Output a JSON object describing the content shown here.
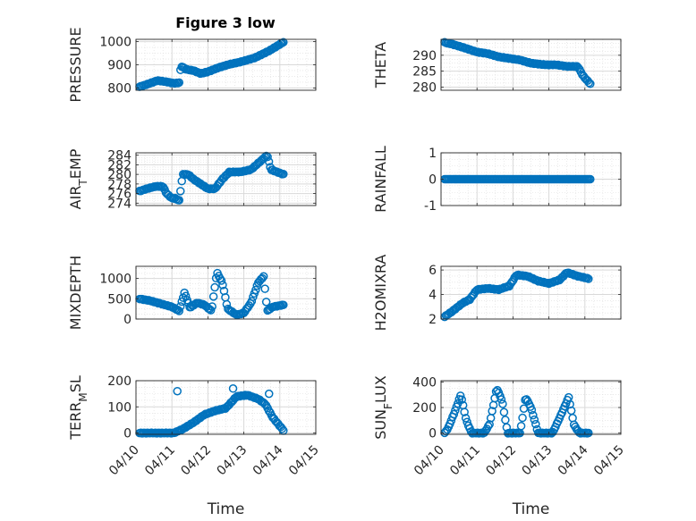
{
  "figure": {
    "title": "Figure 3 low"
  },
  "colors": {
    "marker": "#0072BD",
    "grid": "#DCDCDC",
    "axis": "#262626"
  },
  "chart_data": [
    {
      "id": "pressure",
      "type": "scatter",
      "title": "Figure 3 low",
      "ylabel": "PRESSURE",
      "xlabel": "",
      "ylim": [
        790,
        1010
      ],
      "yticks": [
        800,
        900,
        1000
      ],
      "ytick_labels": [
        "800",
        "900",
        "1000"
      ],
      "xlim": [
        0,
        5
      ],
      "xticks": [
        0,
        1,
        2,
        3,
        4,
        5
      ],
      "x_start": 0.1,
      "x_end": 4.1,
      "knots": [
        [
          0.1,
          805
        ],
        [
          0.3,
          815
        ],
        [
          0.6,
          832
        ],
        [
          0.9,
          825
        ],
        [
          1.05,
          820
        ],
        [
          1.2,
          822
        ],
        [
          1.25,
          895
        ],
        [
          1.4,
          880
        ],
        [
          1.6,
          875
        ],
        [
          1.8,
          862
        ],
        [
          2.0,
          870
        ],
        [
          2.3,
          888
        ],
        [
          2.6,
          902
        ],
        [
          2.9,
          912
        ],
        [
          3.3,
          930
        ],
        [
          3.7,
          960
        ],
        [
          4.1,
          998
        ]
      ],
      "segment_breaks": [
        1.22
      ]
    },
    {
      "id": "theta",
      "type": "scatter",
      "ylabel": "THETA",
      "xlabel": "",
      "ylim": [
        279,
        295
      ],
      "yticks": [
        280,
        285,
        290
      ],
      "ytick_labels": [
        "280",
        "285",
        "290"
      ],
      "xlim": [
        0,
        5
      ],
      "xticks": [
        0,
        1,
        2,
        3,
        4,
        5
      ],
      "x_start": 0.1,
      "x_end": 4.15,
      "knots": [
        [
          0.1,
          294
        ],
        [
          0.3,
          293.5
        ],
        [
          0.6,
          292.5
        ],
        [
          1.0,
          291
        ],
        [
          1.3,
          290.5
        ],
        [
          1.6,
          289.5
        ],
        [
          1.9,
          289
        ],
        [
          2.2,
          288.5
        ],
        [
          2.5,
          287.5
        ],
        [
          2.9,
          287
        ],
        [
          3.2,
          287
        ],
        [
          3.5,
          286.5
        ],
        [
          3.8,
          286.5
        ],
        [
          3.95,
          283.5
        ],
        [
          4.15,
          281
        ]
      ]
    },
    {
      "id": "air_temp",
      "type": "scatter",
      "ylabel": "AIR",
      "ylabel_sub": "T",
      "ylabel_suffix": "EMP",
      "xlabel": "",
      "ylim": [
        273.5,
        284.5
      ],
      "yticks": [
        274,
        276,
        278,
        280,
        282,
        284
      ],
      "ytick_labels": [
        "274",
        "276",
        "278",
        "280",
        "282",
        "284"
      ],
      "xlim": [
        0,
        5
      ],
      "xticks": [
        0,
        1,
        2,
        3,
        4,
        5
      ],
      "x_start": 0.1,
      "x_end": 4.1,
      "knots": [
        [
          0.1,
          276.5
        ],
        [
          0.3,
          277
        ],
        [
          0.55,
          277.5
        ],
        [
          0.75,
          277.5
        ],
        [
          0.85,
          276
        ],
        [
          1.0,
          275
        ],
        [
          1.1,
          275
        ],
        [
          1.2,
          274.5
        ],
        [
          1.3,
          280
        ],
        [
          1.45,
          280
        ],
        [
          1.6,
          279
        ],
        [
          1.8,
          278
        ],
        [
          2.0,
          277
        ],
        [
          2.2,
          277
        ],
        [
          2.4,
          279
        ],
        [
          2.6,
          280.5
        ],
        [
          2.9,
          280.5
        ],
        [
          3.2,
          281
        ],
        [
          3.5,
          283
        ],
        [
          3.65,
          284
        ],
        [
          3.75,
          281
        ],
        [
          4.1,
          280
        ]
      ]
    },
    {
      "id": "rainfall",
      "type": "scatter",
      "ylabel": "RAINFALL",
      "xlabel": "",
      "ylim": [
        -1,
        1
      ],
      "yticks": [
        -1,
        0,
        1
      ],
      "ytick_labels": [
        "-1",
        "0",
        "1"
      ],
      "xlim": [
        0,
        5
      ],
      "xticks": [
        0,
        1,
        2,
        3,
        4,
        5
      ],
      "x_start": 0.1,
      "x_end": 4.15,
      "knots": [
        [
          0.1,
          0
        ],
        [
          4.15,
          0
        ]
      ]
    },
    {
      "id": "mixdepth",
      "type": "scatter",
      "ylabel": "MIXDEPTH",
      "xlabel": "",
      "ylim": [
        0,
        1300
      ],
      "yticks": [
        0,
        500,
        1000
      ],
      "ytick_labels": [
        "0",
        "500",
        "1000"
      ],
      "xlim": [
        0,
        5
      ],
      "xticks": [
        0,
        1,
        2,
        3,
        4,
        5
      ],
      "x_start": 0.1,
      "x_end": 4.1,
      "knots": [
        [
          0.1,
          500
        ],
        [
          0.4,
          450
        ],
        [
          0.8,
          350
        ],
        [
          1.0,
          300
        ],
        [
          1.2,
          200
        ],
        [
          1.35,
          650
        ],
        [
          1.5,
          280
        ],
        [
          1.7,
          400
        ],
        [
          1.9,
          350
        ],
        [
          2.1,
          200
        ],
        [
          2.25,
          1150
        ],
        [
          2.4,
          900
        ],
        [
          2.55,
          250
        ],
        [
          2.8,
          100
        ],
        [
          3.0,
          150
        ],
        [
          3.2,
          400
        ],
        [
          3.4,
          900
        ],
        [
          3.55,
          1050
        ],
        [
          3.65,
          200
        ],
        [
          3.8,
          300
        ],
        [
          4.1,
          350
        ]
      ]
    },
    {
      "id": "h2omixra",
      "type": "scatter",
      "ylabel": "H2OMIXRA",
      "xlabel": "",
      "ylim": [
        2,
        6.3
      ],
      "yticks": [
        2,
        4,
        6
      ],
      "ytick_labels": [
        "2",
        "4",
        "6"
      ],
      "xlim": [
        0,
        5
      ],
      "xticks": [
        0,
        1,
        2,
        3,
        4,
        5
      ],
      "x_start": 0.1,
      "x_end": 4.1,
      "knots": [
        [
          0.1,
          2.2
        ],
        [
          0.3,
          2.6
        ],
        [
          0.6,
          3.3
        ],
        [
          0.8,
          3.6
        ],
        [
          1.0,
          4.4
        ],
        [
          1.3,
          4.5
        ],
        [
          1.6,
          4.4
        ],
        [
          1.9,
          4.7
        ],
        [
          2.1,
          5.6
        ],
        [
          2.4,
          5.5
        ],
        [
          2.7,
          5.1
        ],
        [
          3.0,
          4.9
        ],
        [
          3.3,
          5.2
        ],
        [
          3.5,
          5.8
        ],
        [
          3.8,
          5.5
        ],
        [
          4.1,
          5.3
        ]
      ]
    },
    {
      "id": "terr_msl",
      "type": "scatter",
      "ylabel": "TERR",
      "ylabel_sub": "M",
      "ylabel_suffix": "SL",
      "xlabel": "Time",
      "ylim": [
        -5,
        200
      ],
      "yticks": [
        0,
        100,
        200
      ],
      "ytick_labels": [
        "0",
        "100",
        "200"
      ],
      "xlim": [
        0,
        5
      ],
      "xticks": [
        0,
        1,
        2,
        3,
        4,
        5
      ],
      "xtick_labels": [
        "04/10",
        "04/11",
        "04/12",
        "04/13",
        "04/14",
        "04/15"
      ],
      "x_start": 0.1,
      "x_end": 4.1,
      "knots": [
        [
          0.1,
          0
        ],
        [
          0.8,
          0
        ],
        [
          1.05,
          0
        ],
        [
          1.3,
          15
        ],
        [
          1.6,
          40
        ],
        [
          1.9,
          70
        ],
        [
          2.2,
          85
        ],
        [
          2.5,
          95
        ],
        [
          2.8,
          140
        ],
        [
          3.1,
          145
        ],
        [
          3.4,
          130
        ],
        [
          3.6,
          110
        ],
        [
          3.8,
          60
        ],
        [
          4.1,
          10
        ]
      ],
      "outliers": [
        [
          1.15,
          160
        ],
        [
          2.7,
          170
        ],
        [
          3.7,
          150
        ]
      ]
    },
    {
      "id": "sun_flux",
      "type": "scatter",
      "ylabel": "SUN",
      "ylabel_sub": "F",
      "ylabel_suffix": "LUX",
      "xlabel": "Time",
      "ylim": [
        -10,
        410
      ],
      "yticks": [
        0,
        200,
        400
      ],
      "ytick_labels": [
        "0",
        "200",
        "400"
      ],
      "xlim": [
        0,
        5
      ],
      "xticks": [
        0,
        1,
        2,
        3,
        4,
        5
      ],
      "xtick_labels": [
        "04/10",
        "04/11",
        "04/12",
        "04/13",
        "04/14",
        "04/15"
      ],
      "x_start": 0.1,
      "x_end": 4.1,
      "knots": [
        [
          0.1,
          0
        ],
        [
          0.2,
          40
        ],
        [
          0.4,
          180
        ],
        [
          0.55,
          300
        ],
        [
          0.7,
          100
        ],
        [
          0.85,
          0
        ],
        [
          1.2,
          0
        ],
        [
          1.35,
          70
        ],
        [
          1.55,
          350
        ],
        [
          1.7,
          250
        ],
        [
          1.85,
          0
        ],
        [
          2.2,
          0
        ],
        [
          2.35,
          280
        ],
        [
          2.5,
          200
        ],
        [
          2.7,
          0
        ],
        [
          3.1,
          0
        ],
        [
          3.3,
          120
        ],
        [
          3.55,
          280
        ],
        [
          3.7,
          60
        ],
        [
          3.85,
          0
        ],
        [
          4.1,
          0
        ]
      ]
    }
  ]
}
